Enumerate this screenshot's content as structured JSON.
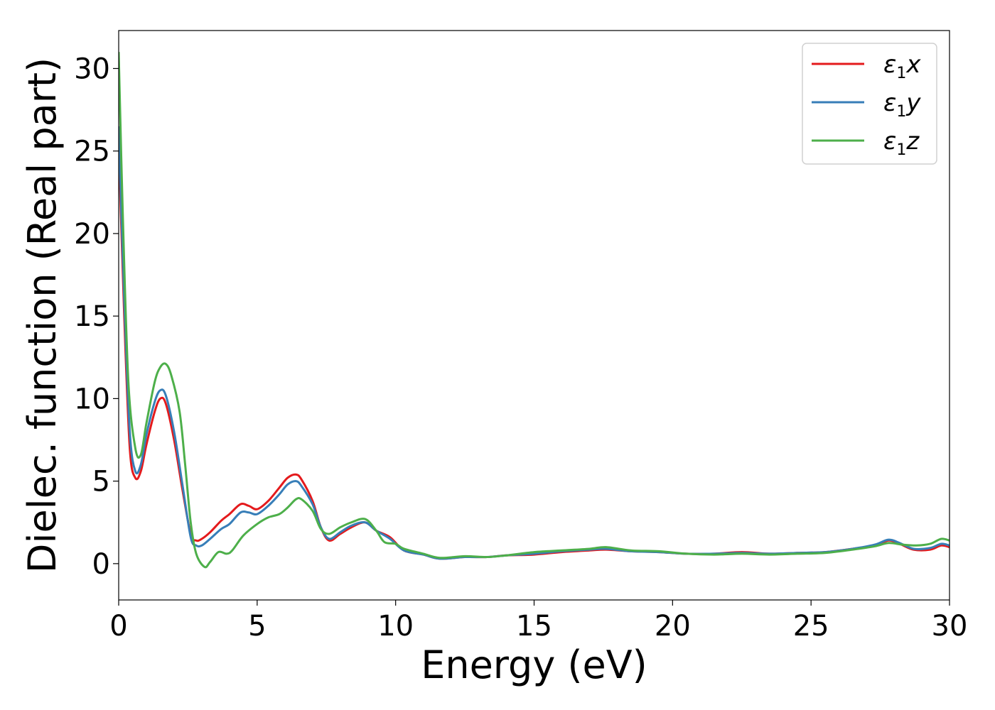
{
  "chart_data": {
    "type": "line",
    "xlabel": "Energy (eV)",
    "ylabel": "Dielec. function (Real part)",
    "xlim": [
      0,
      30
    ],
    "ylim": [
      -2.2,
      32.3
    ],
    "xticks": [
      0,
      5,
      10,
      15,
      20,
      25,
      30
    ],
    "yticks": [
      0,
      5,
      10,
      15,
      20,
      25,
      30
    ],
    "grid": false,
    "legend_position": "top-right",
    "series": [
      {
        "name": "ε₁x",
        "legend": {
          "symbol": "ε",
          "sub": "1",
          "axis": "x"
        },
        "color": "#e41a1c",
        "points": [
          [
            0,
            25.5
          ],
          [
            0.2,
            15
          ],
          [
            0.4,
            7
          ],
          [
            0.6,
            5.2
          ],
          [
            0.8,
            5.6
          ],
          [
            1.0,
            7.2
          ],
          [
            1.3,
            9.2
          ],
          [
            1.5,
            10.0
          ],
          [
            1.7,
            9.7
          ],
          [
            2.0,
            7.5
          ],
          [
            2.3,
            4.5
          ],
          [
            2.6,
            1.8
          ],
          [
            2.8,
            1.4
          ],
          [
            3.0,
            1.5
          ],
          [
            3.3,
            1.9
          ],
          [
            3.7,
            2.6
          ],
          [
            4.0,
            3.0
          ],
          [
            4.4,
            3.6
          ],
          [
            4.7,
            3.5
          ],
          [
            5.0,
            3.3
          ],
          [
            5.4,
            3.8
          ],
          [
            5.8,
            4.6
          ],
          [
            6.1,
            5.2
          ],
          [
            6.4,
            5.4
          ],
          [
            6.6,
            5.1
          ],
          [
            7.0,
            3.8
          ],
          [
            7.3,
            2.2
          ],
          [
            7.6,
            1.4
          ],
          [
            8.0,
            1.8
          ],
          [
            8.4,
            2.2
          ],
          [
            8.9,
            2.5
          ],
          [
            9.3,
            2.0
          ],
          [
            9.8,
            1.6
          ],
          [
            10.3,
            0.8
          ],
          [
            11.0,
            0.55
          ],
          [
            11.6,
            0.3
          ],
          [
            12.5,
            0.4
          ],
          [
            13.3,
            0.4
          ],
          [
            14.0,
            0.5
          ],
          [
            15.0,
            0.55
          ],
          [
            16.0,
            0.7
          ],
          [
            17.0,
            0.8
          ],
          [
            17.6,
            0.85
          ],
          [
            18.5,
            0.75
          ],
          [
            19.5,
            0.7
          ],
          [
            20.5,
            0.6
          ],
          [
            21.5,
            0.6
          ],
          [
            22.5,
            0.7
          ],
          [
            23.5,
            0.6
          ],
          [
            24.5,
            0.65
          ],
          [
            25.5,
            0.7
          ],
          [
            26.5,
            0.9
          ],
          [
            27.3,
            1.1
          ],
          [
            27.8,
            1.4
          ],
          [
            28.2,
            1.2
          ],
          [
            28.7,
            0.85
          ],
          [
            29.3,
            0.85
          ],
          [
            29.7,
            1.1
          ],
          [
            30,
            1.0
          ]
        ]
      },
      {
        "name": "ε₁y",
        "legend": {
          "symbol": "ε",
          "sub": "1",
          "axis": "y"
        },
        "color": "#377eb8",
        "points": [
          [
            0,
            26.5
          ],
          [
            0.2,
            16
          ],
          [
            0.4,
            8
          ],
          [
            0.6,
            5.6
          ],
          [
            0.8,
            6.0
          ],
          [
            1.0,
            7.8
          ],
          [
            1.3,
            9.8
          ],
          [
            1.5,
            10.5
          ],
          [
            1.7,
            10.2
          ],
          [
            2.0,
            8.0
          ],
          [
            2.3,
            4.8
          ],
          [
            2.6,
            1.6
          ],
          [
            2.8,
            1.1
          ],
          [
            3.0,
            1.1
          ],
          [
            3.3,
            1.5
          ],
          [
            3.7,
            2.1
          ],
          [
            4.0,
            2.4
          ],
          [
            4.4,
            3.1
          ],
          [
            4.7,
            3.1
          ],
          [
            5.0,
            3.0
          ],
          [
            5.4,
            3.5
          ],
          [
            5.8,
            4.2
          ],
          [
            6.1,
            4.8
          ],
          [
            6.4,
            5.0
          ],
          [
            6.6,
            4.7
          ],
          [
            7.0,
            3.6
          ],
          [
            7.3,
            2.2
          ],
          [
            7.6,
            1.5
          ],
          [
            8.0,
            1.9
          ],
          [
            8.4,
            2.3
          ],
          [
            8.9,
            2.5
          ],
          [
            9.3,
            2.0
          ],
          [
            9.8,
            1.5
          ],
          [
            10.3,
            0.8
          ],
          [
            11.0,
            0.55
          ],
          [
            11.6,
            0.3
          ],
          [
            12.5,
            0.4
          ],
          [
            13.3,
            0.4
          ],
          [
            14.0,
            0.5
          ],
          [
            15.0,
            0.6
          ],
          [
            16.0,
            0.75
          ],
          [
            17.0,
            0.85
          ],
          [
            17.6,
            0.9
          ],
          [
            18.5,
            0.75
          ],
          [
            19.5,
            0.7
          ],
          [
            20.5,
            0.6
          ],
          [
            21.5,
            0.6
          ],
          [
            22.5,
            0.65
          ],
          [
            23.5,
            0.6
          ],
          [
            24.5,
            0.65
          ],
          [
            25.5,
            0.7
          ],
          [
            26.5,
            0.9
          ],
          [
            27.3,
            1.15
          ],
          [
            27.8,
            1.45
          ],
          [
            28.2,
            1.25
          ],
          [
            28.7,
            0.9
          ],
          [
            29.3,
            0.95
          ],
          [
            29.7,
            1.2
          ],
          [
            30,
            1.1
          ]
        ]
      },
      {
        "name": "ε₁z",
        "legend": {
          "symbol": "ε",
          "sub": "1",
          "axis": "z"
        },
        "color": "#4daf4a",
        "points": [
          [
            0,
            31
          ],
          [
            0.15,
            21
          ],
          [
            0.35,
            11
          ],
          [
            0.6,
            7.0
          ],
          [
            0.8,
            6.6
          ],
          [
            1.0,
            8.5
          ],
          [
            1.3,
            11.0
          ],
          [
            1.5,
            11.9
          ],
          [
            1.7,
            12.1
          ],
          [
            1.9,
            11.4
          ],
          [
            2.2,
            9.2
          ],
          [
            2.4,
            6.0
          ],
          [
            2.6,
            2.5
          ],
          [
            2.8,
            0.6
          ],
          [
            3.1,
            -0.2
          ],
          [
            3.3,
            0.1
          ],
          [
            3.6,
            0.7
          ],
          [
            3.9,
            0.6
          ],
          [
            4.1,
            0.8
          ],
          [
            4.5,
            1.7
          ],
          [
            5.0,
            2.4
          ],
          [
            5.4,
            2.8
          ],
          [
            5.8,
            3.0
          ],
          [
            6.1,
            3.4
          ],
          [
            6.4,
            3.9
          ],
          [
            6.6,
            3.9
          ],
          [
            7.0,
            3.2
          ],
          [
            7.3,
            2.1
          ],
          [
            7.6,
            1.8
          ],
          [
            8.0,
            2.2
          ],
          [
            8.4,
            2.5
          ],
          [
            8.9,
            2.7
          ],
          [
            9.3,
            2.0
          ],
          [
            9.6,
            1.3
          ],
          [
            10.0,
            1.2
          ],
          [
            10.3,
            0.9
          ],
          [
            11.0,
            0.6
          ],
          [
            11.6,
            0.35
          ],
          [
            12.5,
            0.45
          ],
          [
            13.3,
            0.4
          ],
          [
            14.0,
            0.5
          ],
          [
            15.0,
            0.7
          ],
          [
            16.0,
            0.8
          ],
          [
            17.0,
            0.9
          ],
          [
            17.6,
            1.0
          ],
          [
            18.5,
            0.8
          ],
          [
            19.5,
            0.75
          ],
          [
            20.5,
            0.6
          ],
          [
            21.5,
            0.55
          ],
          [
            22.5,
            0.6
          ],
          [
            23.5,
            0.55
          ],
          [
            24.5,
            0.6
          ],
          [
            25.5,
            0.65
          ],
          [
            26.5,
            0.85
          ],
          [
            27.3,
            1.05
          ],
          [
            27.8,
            1.25
          ],
          [
            28.3,
            1.15
          ],
          [
            28.8,
            1.1
          ],
          [
            29.3,
            1.2
          ],
          [
            29.7,
            1.5
          ],
          [
            30,
            1.4
          ]
        ]
      }
    ]
  }
}
